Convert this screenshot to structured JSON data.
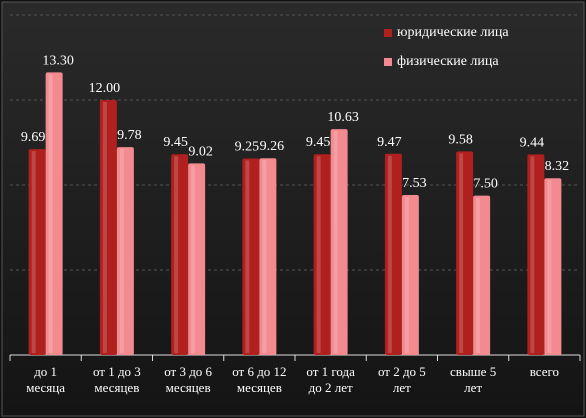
{
  "chart_data": {
    "type": "bar",
    "categories": [
      "до 1\nмесяца",
      "от 1 до 3\nмесяцев",
      "от 3 до 6\nмесяцев",
      "от 6 до 12\nмесяцев",
      "от 1 года\nдо 2 лет",
      "от 2 до 5\nлет",
      "свыше 5\nлет",
      "всего"
    ],
    "series": [
      {
        "name": "юридические лица",
        "color": "#b0201e",
        "values": [
          9.69,
          12.0,
          9.45,
          9.25,
          9.45,
          9.47,
          9.58,
          9.44
        ],
        "value_labels": [
          "9.69",
          "12.00",
          "9.45",
          "9.25",
          "9.45",
          "9.47",
          "9.58",
          "9.44"
        ]
      },
      {
        "name": "физические лица",
        "color": "#f28a90",
        "values": [
          13.3,
          9.78,
          9.02,
          9.26,
          10.63,
          7.53,
          7.5,
          8.32
        ],
        "value_labels": [
          "13.30",
          "9.78",
          "9.02",
          "9.26",
          "10.63",
          "7.53",
          "7.50",
          "8.32"
        ]
      }
    ],
    "ylim": [
      0,
      16
    ],
    "yticks": [
      0,
      4,
      8,
      12,
      16
    ],
    "grid": true,
    "legend": "top-right"
  }
}
